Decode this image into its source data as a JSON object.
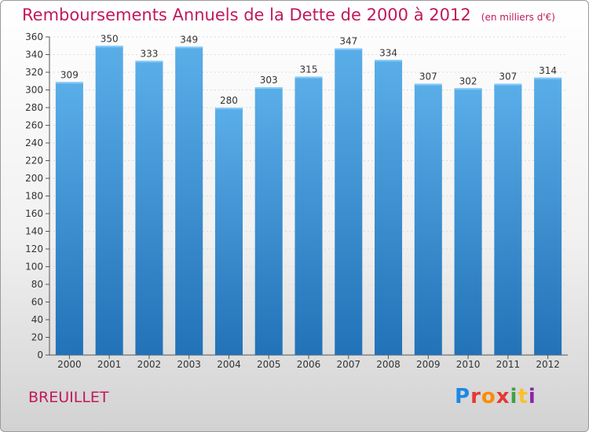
{
  "title": "Remboursements Annuels de la Dette de 2000 à 2012",
  "title_unit": "(en milliers d'€)",
  "commune": "BREUILLET",
  "logo": {
    "letters": [
      "P",
      "r",
      "o",
      "x",
      "i",
      "t",
      "i"
    ],
    "colors": [
      "#1e88e5",
      "#e53935",
      "#fb8c00",
      "#e53935",
      "#43a047",
      "#fbc02d",
      "#8e24aa"
    ]
  },
  "colors": {
    "bar_top": "#5aaee8",
    "bar_bottom": "#2272b8",
    "title": "#c2185b"
  },
  "chart_data": {
    "type": "bar",
    "title": "Remboursements Annuels de la Dette de 2000 à 2012",
    "categories": [
      "2000",
      "2001",
      "2002",
      "2003",
      "2004",
      "2005",
      "2006",
      "2007",
      "2008",
      "2009",
      "2010",
      "2011",
      "2012"
    ],
    "values": [
      309,
      350,
      333,
      349,
      280,
      303,
      315,
      347,
      334,
      307,
      302,
      307,
      314
    ],
    "ylim": [
      0,
      360
    ],
    "yticks": [
      0,
      20,
      40,
      60,
      80,
      100,
      120,
      140,
      160,
      180,
      200,
      220,
      240,
      260,
      280,
      300,
      320,
      340,
      360
    ],
    "grid": true,
    "xlabel": "",
    "ylabel": ""
  }
}
